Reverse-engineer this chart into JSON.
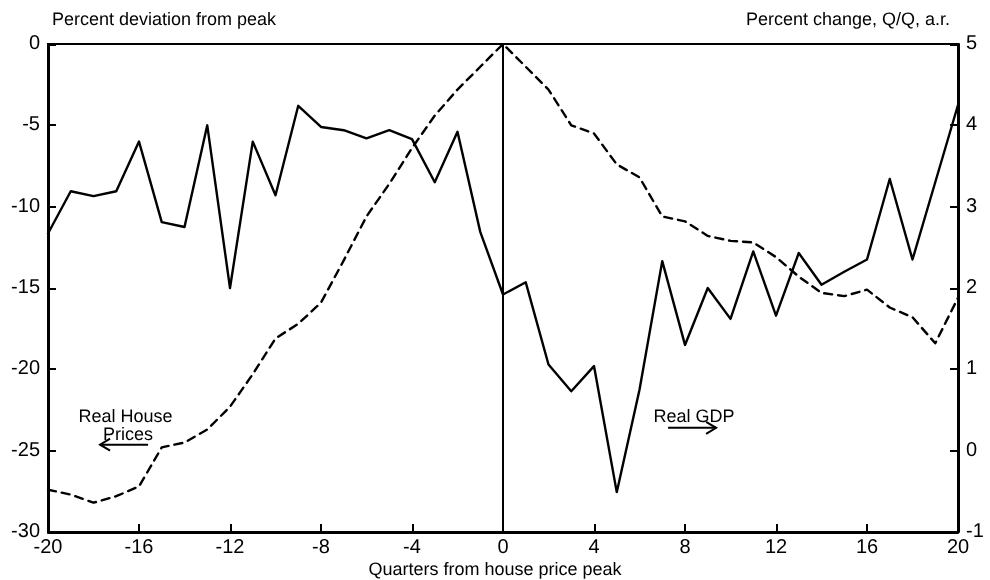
{
  "chart_data": {
    "type": "line",
    "xlabel": "Quarters from house price peak",
    "ylabel": "Percent deviation from peak",
    "y2label": "Percent change, Q/Q, a.r.",
    "x": [
      -20,
      -19,
      -18,
      -17,
      -16,
      -15,
      -14,
      -13,
      -12,
      -11,
      -10,
      -9,
      -8,
      -7,
      -6,
      -5,
      -4,
      -3,
      -2,
      -1,
      0,
      1,
      2,
      3,
      4,
      5,
      6,
      7,
      8,
      9,
      10,
      11,
      12,
      13,
      14,
      15,
      16,
      17,
      18,
      19,
      20
    ],
    "series": [
      {
        "color": "#000000",
        "line_style": "dashed",
        "values": [
          -27.4,
          -27.7,
          -28.2,
          -27.8,
          -27.2,
          -24.8,
          -24.5,
          -23.7,
          -22.3,
          -20.3,
          -18.1,
          -17.2,
          -15.9,
          -13.3,
          -10.6,
          -8.6,
          -6.4,
          -4.4,
          -2.8,
          -1.4,
          0,
          -1.4,
          -2.8,
          -5.0,
          -5.5,
          -7.4,
          -8.2,
          -10.6,
          -10.9,
          -11.8,
          -12.1,
          -12.2,
          -13.1,
          -14.3,
          -15.3,
          -15.5,
          -15.1,
          -16.2,
          -16.8,
          -18.4,
          -15.6
        ]
      },
      {
        "color": "#000000",
        "line_style": "solid",
        "axis": "y2",
        "values": [
          2.67,
          3.19,
          3.13,
          3.19,
          3.8,
          2.81,
          2.75,
          4.0,
          2.0,
          3.8,
          3.14,
          4.24,
          3.98,
          3.94,
          3.84,
          3.94,
          3.83,
          3.3,
          3.92,
          2.69,
          1.92,
          2.07,
          1.06,
          0.73,
          1.04,
          -0.51,
          0.75,
          2.33,
          1.3,
          2.0,
          1.62,
          2.45,
          1.66,
          2.43,
          2.04,
          2.2,
          2.35,
          3.34,
          2.35,
          3.3,
          4.25
        ]
      }
    ],
    "xlim": [
      -20,
      20
    ],
    "xticks": [
      -20,
      -16,
      -12,
      -8,
      -4,
      0,
      4,
      8,
      12,
      16,
      20
    ],
    "ylim": [
      -30,
      0
    ],
    "yticks": [
      -30,
      -25,
      -20,
      -15,
      -10,
      -5,
      0
    ],
    "y2lim": [
      -1,
      5
    ],
    "y2ticks": [
      -1,
      0,
      1,
      2,
      3,
      4,
      5
    ],
    "ref_lines": [
      {
        "axis": "x",
        "value": 0,
        "color": "#000000"
      }
    ],
    "annotations": [
      "Real House Prices",
      "Real GDP"
    ],
    "grid": false,
    "marker": "none"
  }
}
